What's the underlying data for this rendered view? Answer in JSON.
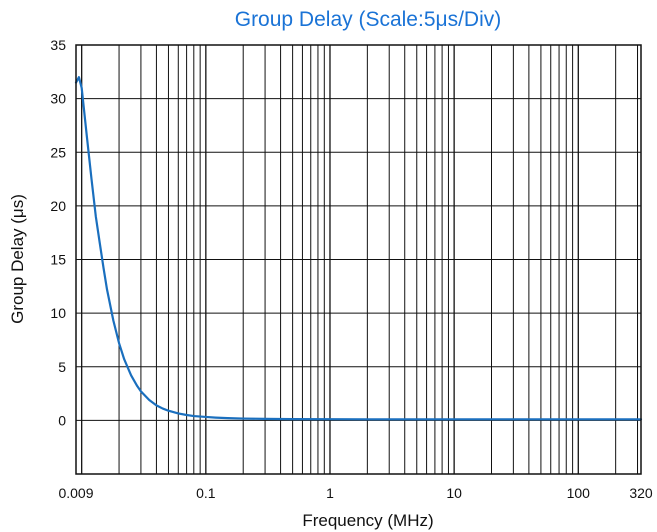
{
  "chart_data": {
    "type": "line",
    "title": "Group Delay (Scale:5μs/Div)",
    "xlabel": "Frequency (MHz)",
    "ylabel": "Group Delay (μs)",
    "x_scale": "log",
    "xlim": [
      0.009,
      320
    ],
    "ylim": [
      -5,
      35
    ],
    "y_ticks": [
      0,
      5,
      10,
      15,
      20,
      25,
      30,
      35
    ],
    "y_tick_labels": [
      "0",
      "5",
      "10",
      "15",
      "20",
      "25",
      "30",
      "35"
    ],
    "x_ticks": [
      0.009,
      0.1,
      1,
      10,
      100,
      320
    ],
    "x_tick_labels": [
      "0.009",
      "0.1",
      "1",
      "10",
      "100",
      "320"
    ],
    "grid": true,
    "colors": {
      "title": "#1a73d6",
      "line": "#1a6fbe",
      "grid": "#111111"
    },
    "series": [
      {
        "x": [
          0.009,
          0.0095,
          0.01,
          0.011,
          0.012,
          0.013,
          0.014,
          0.015,
          0.016,
          0.018,
          0.02,
          0.022,
          0.025,
          0.028,
          0.03,
          0.035,
          0.04,
          0.045,
          0.05,
          0.06,
          0.07,
          0.08,
          0.1,
          0.12,
          0.15,
          0.2,
          0.3,
          0.5,
          1,
          2,
          5,
          10,
          20,
          50,
          100,
          200,
          320
        ],
        "y": [
          31.5,
          32.0,
          31.0,
          26.5,
          22.5,
          19.0,
          16.5,
          14.2,
          12.2,
          9.3,
          7.2,
          5.7,
          4.2,
          3.2,
          2.7,
          1.9,
          1.4,
          1.1,
          0.9,
          0.65,
          0.5,
          0.4,
          0.32,
          0.26,
          0.21,
          0.17,
          0.14,
          0.12,
          0.11,
          0.1,
          0.1,
          0.1,
          0.1,
          0.1,
          0.1,
          0.1,
          0.1
        ]
      }
    ]
  }
}
